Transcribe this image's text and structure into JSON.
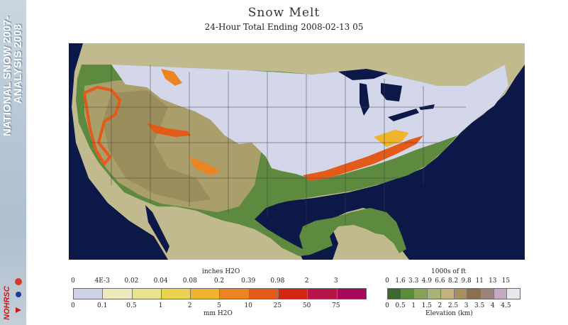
{
  "banner": {
    "line1": "NATIONAL SNOW 2007-",
    "line2": "ANALYSIS 2008",
    "logo_text": "NOHRSC"
  },
  "map": {
    "title": "Snow Melt",
    "subtitle": "24-Hour Total Ending 2008-02-13 05"
  },
  "melt_legend": {
    "top_unit": "inches H2O",
    "bottom_unit": "mm H2O",
    "top_ticks": [
      "0",
      "4E-3",
      "0.02",
      "0.04",
      "0.08",
      "0.2",
      "0.39",
      "0.98",
      "2",
      "3"
    ],
    "bottom_ticks": [
      "0",
      "0.1",
      "0.5",
      "1",
      "2",
      "5",
      "10",
      "25",
      "50",
      "75"
    ],
    "colors": [
      "#d0d2e6",
      "#ecebbb",
      "#e9e58e",
      "#ead44f",
      "#f0b52c",
      "#ec8422",
      "#e45a18",
      "#d22612",
      "#b81448",
      "#a8085a"
    ]
  },
  "elev_legend": {
    "top_unit": "1000s of ft",
    "bottom_unit": "Elevation (km)",
    "top_ticks": [
      "0",
      "1.6",
      "3.3",
      "4.9",
      "6.6",
      "8.2",
      "9.8",
      "11",
      "13",
      "15"
    ],
    "bottom_ticks": [
      "0",
      "0.5",
      "1",
      "1.5",
      "2",
      "2.5",
      "3",
      "3.5",
      "4",
      "4.5"
    ],
    "colors": [
      "#3c6a2e",
      "#5d8a3d",
      "#86a25a",
      "#a7b475",
      "#c1b27e",
      "#a98e60",
      "#8d6f4d",
      "#9d8478",
      "#c4a8c6",
      "#ebe6ee"
    ]
  },
  "colors": {
    "ocean": "#0c1848",
    "land_outside": "#c2ba8f",
    "snow_cover": "#d4d6ea",
    "lowland": "#5e8a40"
  }
}
